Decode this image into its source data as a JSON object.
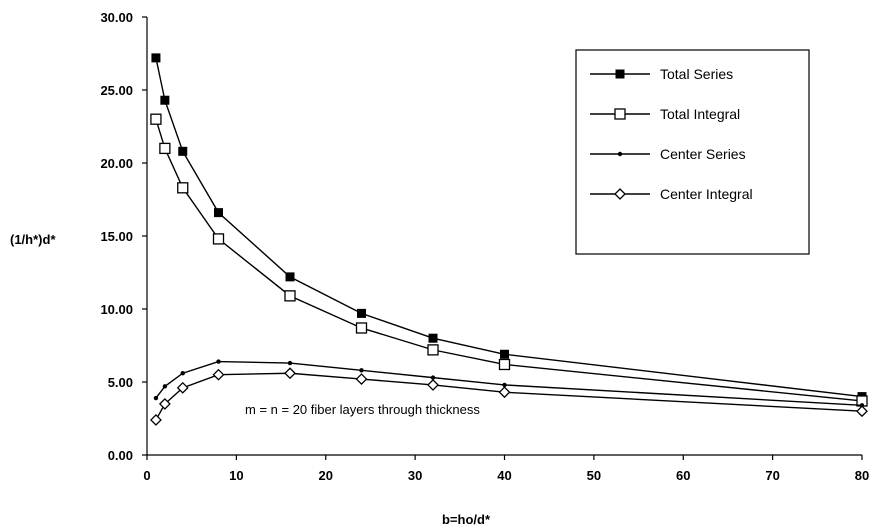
{
  "chart_data": {
    "type": "line",
    "title": "",
    "xlabel": "b=ho/d*",
    "ylabel": "(1/h*)d*",
    "xlim": [
      0,
      80
    ],
    "ylim": [
      0,
      30
    ],
    "x_ticks": [
      "0",
      "10",
      "20",
      "30",
      "40",
      "50",
      "60",
      "70",
      "80"
    ],
    "y_ticks": [
      "0.00",
      "5.00",
      "10.00",
      "15.00",
      "20.00",
      "25.00",
      "30.00"
    ],
    "grid": false,
    "legend_position": "right",
    "annotation": "m = n = 20 fiber layers through thickness",
    "series": [
      {
        "name": "Total Series",
        "marker": "filled-square",
        "x": [
          1,
          2,
          4,
          8,
          16,
          24,
          32,
          40,
          80
        ],
        "y": [
          27.2,
          24.3,
          20.8,
          16.6,
          12.2,
          9.7,
          8.0,
          6.9,
          4.0
        ]
      },
      {
        "name": "Total Integral",
        "marker": "open-square",
        "x": [
          1,
          2,
          4,
          8,
          16,
          24,
          32,
          40,
          80
        ],
        "y": [
          23.0,
          21.0,
          18.3,
          14.8,
          10.9,
          8.7,
          7.2,
          6.2,
          3.7
        ]
      },
      {
        "name": "Center Series",
        "marker": "small-dot",
        "x": [
          1,
          2,
          4,
          8,
          16,
          24,
          32,
          40,
          80
        ],
        "y": [
          3.9,
          4.7,
          5.6,
          6.4,
          6.3,
          5.8,
          5.3,
          4.8,
          3.4
        ]
      },
      {
        "name": "Center Integral",
        "marker": "open-diamond",
        "x": [
          1,
          2,
          4,
          8,
          16,
          24,
          32,
          40,
          80
        ],
        "y": [
          2.4,
          3.5,
          4.6,
          5.5,
          5.6,
          5.2,
          4.8,
          4.3,
          3.0
        ]
      }
    ]
  }
}
